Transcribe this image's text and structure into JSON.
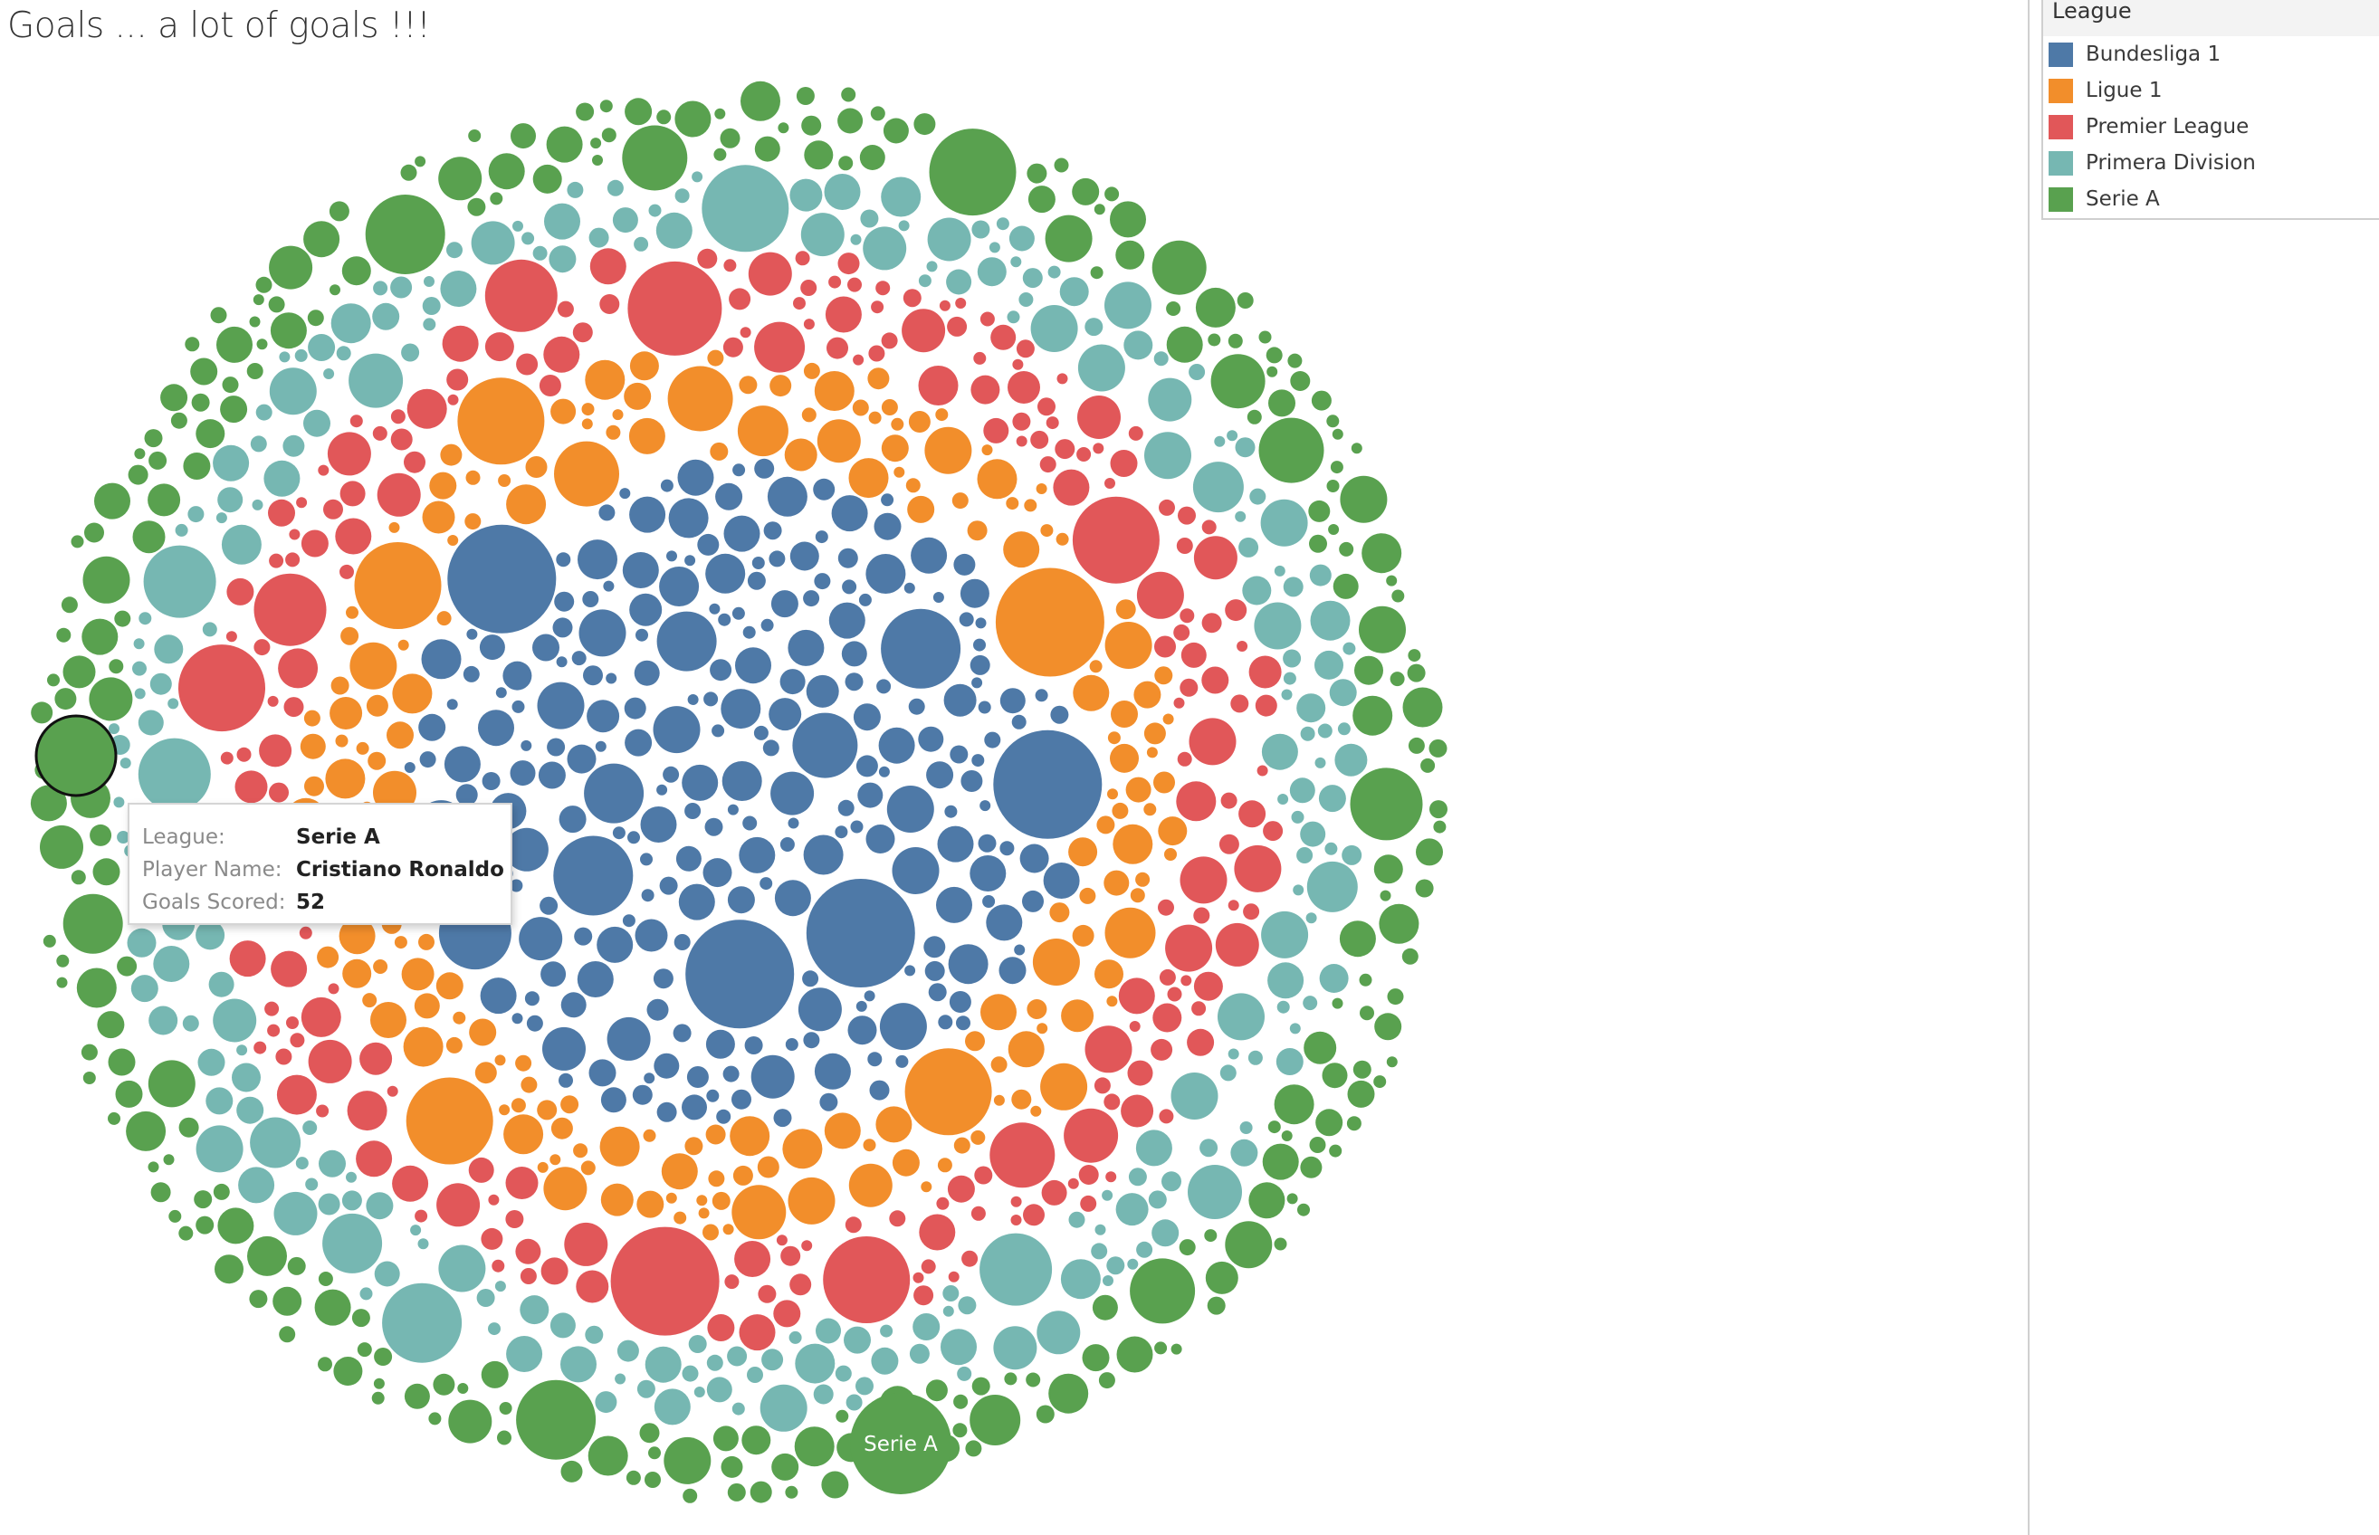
{
  "title": "Goals ... a lot of goals !!!",
  "legend": {
    "title": "League",
    "items": [
      {
        "label": "Bundesliga 1",
        "color": "#4e79a7"
      },
      {
        "label": "Ligue 1",
        "color": "#f28e2b"
      },
      {
        "label": "Premier League",
        "color": "#e15759"
      },
      {
        "label": "Primera Division",
        "color": "#76b7b2"
      },
      {
        "label": "Serie A",
        "color": "#59a14f"
      }
    ]
  },
  "tooltip": {
    "league_key": "League:",
    "league_value": "Serie A",
    "player_key": "Player Name:",
    "player_value": "Cristiano Ronaldo",
    "goals_key": "Goals Scored:",
    "goals_value": "52"
  },
  "chart_data": {
    "type": "packed-bubble",
    "measure": "Goals Scored",
    "color_by": "League",
    "series": [
      {
        "name": "Bundesliga 1",
        "color": "#4e79a7"
      },
      {
        "name": "Ligue 1",
        "color": "#f28e2b"
      },
      {
        "name": "Premier League",
        "color": "#e15759"
      },
      {
        "name": "Primera Division",
        "color": "#76b7b2"
      },
      {
        "name": "Serie A",
        "color": "#59a14f"
      }
    ],
    "highlighted_mark": {
      "league": "Serie A",
      "player": "Cristiano Ronaldo",
      "goals": 52
    },
    "bubble_labels": [
      "Serie A"
    ]
  }
}
